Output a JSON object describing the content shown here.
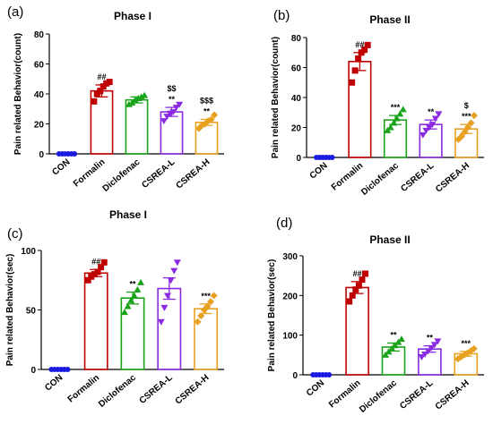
{
  "figure": {
    "background": "#ffffff"
  },
  "colors": {
    "CON": "#1a1ae0",
    "Formalin": "#c00000",
    "Diclofenac": "#1ca31c",
    "CSREA-L": "#8a2be2",
    "CSREA-H": "#e8a020",
    "axis": "#000000"
  },
  "chart_data": [
    {
      "panel": "(a)",
      "type": "bar",
      "title": "Phase I",
      "xlabel": "",
      "ylabel": "Pain related Behavior(count)",
      "ylim": [
        0,
        80
      ],
      "yticks": [
        0,
        20,
        40,
        60,
        80
      ],
      "grid": false,
      "categories": [
        "CON",
        "Formalin",
        "Diclofenac",
        "CSREA-L",
        "CSREA-H"
      ],
      "values": [
        0,
        42,
        36,
        28,
        21
      ],
      "errors": [
        0,
        4,
        2,
        3,
        2
      ],
      "annotations": [
        "",
        "##",
        "",
        "$$\n**",
        "$$$\n**"
      ],
      "points": [
        [
          0,
          0,
          0,
          0,
          0,
          0
        ],
        [
          35,
          40,
          42,
          45,
          47,
          48
        ],
        [
          33,
          34,
          36,
          37,
          38,
          39
        ],
        [
          22,
          25,
          27,
          28,
          31,
          33
        ],
        [
          17,
          19,
          20,
          22,
          23,
          26
        ]
      ]
    },
    {
      "panel": "(b)",
      "type": "bar",
      "title": "Phase II",
      "xlabel": "",
      "ylabel": "Pain related Behavior(count)",
      "ylim": [
        0,
        80
      ],
      "yticks": [
        0,
        20,
        40,
        60,
        80
      ],
      "grid": false,
      "categories": [
        "CON",
        "Formalin",
        "Diclofenac",
        "CSREA-L",
        "CSREA-H"
      ],
      "values": [
        0,
        64,
        25,
        22,
        19
      ],
      "errors": [
        0,
        6,
        3,
        3,
        3
      ],
      "annotations": [
        "",
        "##",
        "***",
        "**",
        "$\n***"
      ],
      "points": [
        [
          0,
          0,
          0,
          0,
          0,
          0
        ],
        [
          50,
          58,
          66,
          70,
          72,
          75
        ],
        [
          18,
          20,
          23,
          26,
          29,
          32
        ],
        [
          15,
          18,
          20,
          22,
          26,
          29
        ],
        [
          12,
          14,
          17,
          20,
          23,
          28
        ]
      ]
    },
    {
      "panel": "(c)",
      "type": "bar",
      "title": "Phase I",
      "xlabel": "",
      "ylabel": "Pain related Behavior(sec)",
      "ylim": [
        0,
        100
      ],
      "yticks": [
        0,
        50,
        100
      ],
      "grid": false,
      "categories": [
        "CON",
        "Formalin",
        "Diclofenac",
        "CSREA-L",
        "CSREA-H"
      ],
      "values": [
        0,
        81,
        60,
        68,
        51
      ],
      "errors": [
        0,
        3,
        5,
        9,
        4
      ],
      "annotations": [
        "",
        "##",
        "**",
        "",
        "***"
      ],
      "points": [
        [
          0,
          0,
          0,
          0,
          0,
          0
        ],
        [
          75,
          78,
          80,
          82,
          86,
          90
        ],
        [
          48,
          53,
          58,
          62,
          67,
          73
        ],
        [
          40,
          52,
          62,
          75,
          83,
          90
        ],
        [
          40,
          45,
          50,
          53,
          57,
          62
        ]
      ]
    },
    {
      "panel": "(d)",
      "type": "bar",
      "title": "Phase II",
      "xlabel": "",
      "ylabel": "Pain related Behavior(sec)",
      "ylim": [
        0,
        300
      ],
      "yticks": [
        0,
        100,
        200,
        300
      ],
      "grid": false,
      "categories": [
        "CON",
        "Formalin",
        "Diclofenac",
        "CSREA-L",
        "CSREA-H"
      ],
      "values": [
        0,
        220,
        70,
        65,
        53
      ],
      "errors": [
        0,
        15,
        10,
        8,
        6
      ],
      "annotations": [
        "",
        "##",
        "**",
        "**",
        "***"
      ],
      "points": [
        [
          0,
          0,
          0,
          0,
          0,
          0
        ],
        [
          185,
          200,
          215,
          225,
          240,
          255
        ],
        [
          50,
          58,
          66,
          74,
          82,
          90
        ],
        [
          45,
          52,
          60,
          68,
          76,
          85
        ],
        [
          40,
          45,
          50,
          55,
          60,
          66
        ]
      ]
    }
  ]
}
